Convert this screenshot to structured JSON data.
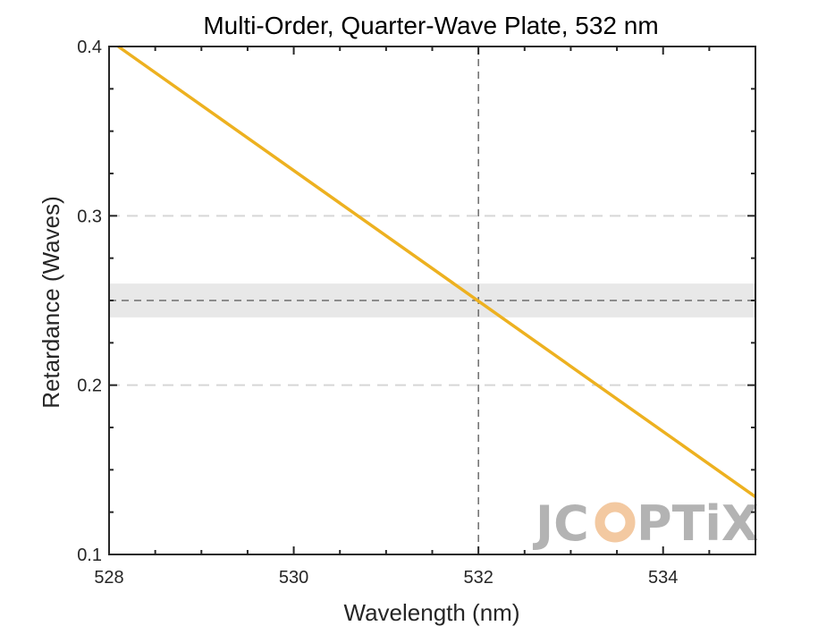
{
  "chart_data": {
    "type": "line",
    "title": "Multi-Order, Quarter-Wave Plate, 532 nm",
    "xlabel": "Wavelength (nm)",
    "ylabel": "Retardance (Waves)",
    "xlim": [
      528,
      535
    ],
    "ylim": [
      0.1,
      0.4
    ],
    "x_ticks": [
      528,
      530,
      532,
      534
    ],
    "y_ticks": [
      0.1,
      0.2,
      0.3,
      0.4
    ],
    "x_tick_labels": [
      "528",
      "530",
      "532",
      "534"
    ],
    "y_tick_labels": [
      "0.1",
      "0.2",
      "0.3",
      "0.4"
    ],
    "x_minor_step": 0.5,
    "y_minor_step": 0.025,
    "grid_y_dashed": [
      0.2,
      0.3
    ],
    "series": [
      {
        "x": [
          528.1,
          535.0
        ],
        "y": [
          0.4,
          0.134
        ],
        "color": "#EDB120"
      }
    ],
    "reference": {
      "target_wavelength": 532,
      "target_retardance": 0.25,
      "tolerance_band": [
        0.24,
        0.26
      ]
    },
    "watermark": "JCOPTIX"
  },
  "colors": {
    "line": "#EDB120",
    "band": "#e8e8e8",
    "grid": "#d6d6d6",
    "axis": "#262626",
    "reference": "#555555",
    "logo_gray": "#b3b3b3",
    "logo_accent": "#f3c9a1"
  }
}
